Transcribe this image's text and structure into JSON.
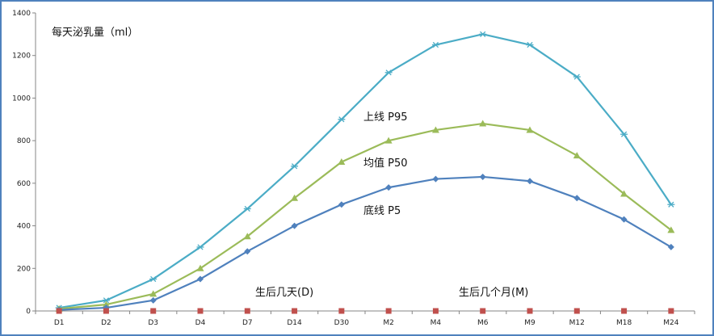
{
  "chart_data": {
    "type": "line",
    "title": "每天泌乳量（ml）",
    "xlabel": "",
    "ylabel": "",
    "categories": [
      "D1",
      "D2",
      "D3",
      "D4",
      "D7",
      "D14",
      "D30",
      "M2",
      "M4",
      "M6",
      "M9",
      "M12",
      "M18",
      "M24"
    ],
    "ylim": [
      0,
      1400
    ],
    "yticks": [
      0,
      200,
      400,
      600,
      800,
      1000,
      1200,
      1400
    ],
    "grid": false,
    "series": [
      {
        "name": "上线 P95",
        "color": "#4bacc6",
        "marker": "asterisk",
        "values": [
          15,
          50,
          150,
          300,
          480,
          680,
          900,
          1120,
          1250,
          1300,
          1250,
          1100,
          830,
          500
        ]
      },
      {
        "name": "均值 P50",
        "color": "#9bbb59",
        "marker": "triangle",
        "values": [
          10,
          30,
          80,
          200,
          350,
          530,
          700,
          800,
          850,
          880,
          850,
          730,
          550,
          380
        ]
      },
      {
        "name": "底线 P5",
        "color": "#4f81bd",
        "marker": "diamond",
        "values": [
          5,
          15,
          50,
          150,
          280,
          400,
          500,
          580,
          620,
          630,
          610,
          530,
          430,
          300
        ]
      },
      {
        "name": "",
        "color": "#c0504d",
        "marker": "square",
        "values": [
          0,
          0,
          0,
          0,
          0,
          0,
          0,
          0,
          0,
          0,
          0,
          0,
          0,
          0
        ]
      }
    ],
    "annotations": {
      "days_label": "生后几天(D)",
      "months_label": "生后几个月(M)"
    }
  }
}
